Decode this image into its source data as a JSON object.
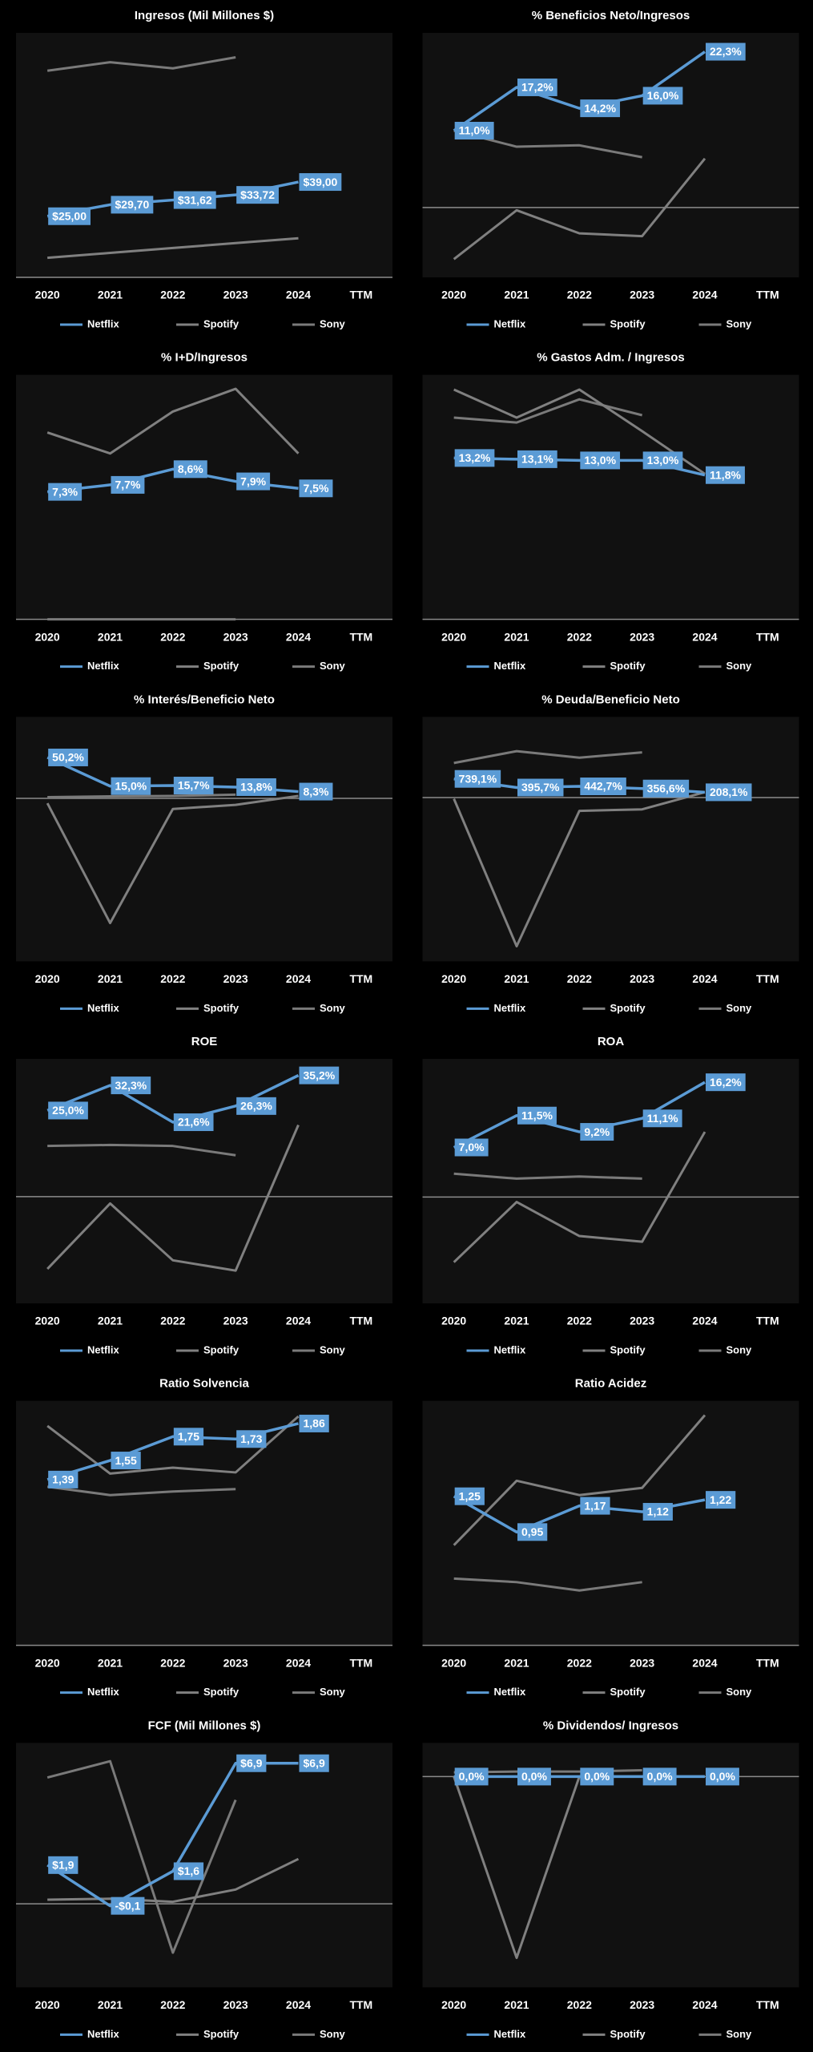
{
  "chart_data": [
    {
      "type": "line",
      "title": "Ingresos (Mil Millones $)",
      "categories": [
        "2020",
        "2021",
        "2022",
        "2023",
        "2024",
        "TTM"
      ],
      "ylim": [
        0,
        100
      ],
      "series": [
        {
          "name": "Netflix",
          "color": "#5b9bd5",
          "values": [
            25,
            29.7,
            31.62,
            33.72,
            39,
            null
          ],
          "value_labels": [
            "$25,00",
            "$29,70",
            "$31,62",
            "$33,72",
            "$39,00",
            null
          ]
        },
        {
          "name": "Spotify",
          "color": "#808080",
          "values": [
            8,
            10,
            12,
            14,
            16,
            null
          ]
        },
        {
          "name": "Sony",
          "color": "#7a7a7a",
          "values": [
            84.5,
            88,
            85.5,
            90,
            null,
            null
          ]
        }
      ]
    },
    {
      "type": "line",
      "title": "% Beneficios Neto/Ingresos",
      "categories": [
        "2020",
        "2021",
        "2022",
        "2023",
        "2024",
        "TTM"
      ],
      "ylim": [
        -10,
        25
      ],
      "series": [
        {
          "name": "Netflix",
          "color": "#5b9bd5",
          "values": [
            11.0,
            17.2,
            14.2,
            16.0,
            22.3,
            null
          ],
          "value_labels": [
            "11,0%",
            "17,2%",
            "14,2%",
            "16,0%",
            "22,3%",
            null
          ]
        },
        {
          "name": "Spotify",
          "color": "#808080",
          "values": [
            -7.4,
            -0.4,
            -3.7,
            -4.1,
            7.0,
            null
          ]
        },
        {
          "name": "Sony",
          "color": "#7a7a7a",
          "values": [
            11,
            8.7,
            8.9,
            7.2,
            null,
            null
          ]
        }
      ]
    },
    {
      "type": "line",
      "title": "% I+D/Ingresos",
      "categories": [
        "2020",
        "2021",
        "2022",
        "2023",
        "2024",
        "TTM"
      ],
      "ylim": [
        0,
        14
      ],
      "series": [
        {
          "name": "Netflix",
          "color": "#5b9bd5",
          "values": [
            7.3,
            7.7,
            8.6,
            7.9,
            7.5,
            null
          ],
          "value_labels": [
            "7,3%",
            "7,7%",
            "8,6%",
            "7,9%",
            "7,5%",
            null
          ]
        },
        {
          "name": "Spotify",
          "color": "#808080",
          "values": [
            10.7,
            9.5,
            11.9,
            13.2,
            9.5,
            null
          ]
        },
        {
          "name": "Sony",
          "color": "#7a7a7a",
          "values": [
            0,
            0,
            0,
            0,
            null,
            null
          ]
        }
      ]
    },
    {
      "type": "line",
      "title": "% Gastos Adm. / Ingresos",
      "categories": [
        "2020",
        "2021",
        "2022",
        "2023",
        "2024",
        "TTM"
      ],
      "ylim": [
        0,
        20
      ],
      "series": [
        {
          "name": "Netflix",
          "color": "#5b9bd5",
          "values": [
            13.2,
            13.1,
            13.0,
            13.0,
            11.8,
            null
          ],
          "value_labels": [
            "13,2%",
            "13,1%",
            "13,0%",
            "13,0%",
            "11,8%",
            null
          ]
        },
        {
          "name": "Spotify",
          "color": "#808080",
          "values": [
            18.8,
            16.5,
            18.8,
            15.4,
            11.9,
            null
          ]
        },
        {
          "name": "Sony",
          "color": "#7a7a7a",
          "values": [
            16.5,
            16.1,
            18.0,
            16.7,
            null,
            null
          ]
        }
      ]
    },
    {
      "type": "line",
      "title": "% Interés/Beneficio Neto",
      "categories": [
        "2020",
        "2021",
        "2022",
        "2023",
        "2024",
        "TTM"
      ],
      "ylim": [
        -200,
        100
      ],
      "series": [
        {
          "name": "Netflix",
          "color": "#5b9bd5",
          "values": [
            50.2,
            15.0,
            15.7,
            13.8,
            8.3,
            null
          ],
          "value_labels": [
            "50,2%",
            "15,0%",
            "15,7%",
            "13,8%",
            "8,3%",
            null
          ]
        },
        {
          "name": "Spotify",
          "color": "#808080",
          "values": [
            -6,
            -153,
            -13,
            -8,
            3,
            null
          ]
        },
        {
          "name": "Sony",
          "color": "#7a7a7a",
          "values": [
            1.5,
            2.5,
            3,
            4.5,
            null,
            null
          ]
        }
      ]
    },
    {
      "type": "line",
      "title": "% Deuda/Beneficio Neto",
      "categories": [
        "2020",
        "2021",
        "2022",
        "2023",
        "2024",
        "TTM"
      ],
      "ylim": [
        -6500,
        3200
      ],
      "series": [
        {
          "name": "Netflix",
          "color": "#5b9bd5",
          "values": [
            739.1,
            395.7,
            442.7,
            356.6,
            208.1,
            null
          ],
          "value_labels": [
            "739,1%",
            "395,7%",
            "442,7%",
            "356,6%",
            "208,1%",
            null
          ]
        },
        {
          "name": "Spotify",
          "color": "#808080",
          "values": [
            -50,
            -5900,
            -530,
            -470,
            210,
            null
          ]
        },
        {
          "name": "Sony",
          "color": "#7a7a7a",
          "values": [
            1370,
            1840,
            1580,
            1790,
            null,
            null
          ]
        }
      ]
    },
    {
      "type": "line",
      "title": "ROE",
      "categories": [
        "2020",
        "2021",
        "2022",
        "2023",
        "2024",
        "TTM"
      ],
      "ylim": [
        -31,
        40
      ],
      "series": [
        {
          "name": "Netflix",
          "color": "#5b9bd5",
          "values": [
            25.0,
            32.3,
            21.6,
            26.3,
            35.2,
            null
          ],
          "value_labels": [
            "25,0%",
            "32,3%",
            "21,6%",
            "26,3%",
            "35,2%",
            null
          ]
        },
        {
          "name": "Spotify",
          "color": "#808080",
          "values": [
            -21,
            -2,
            -18.5,
            -21.5,
            20.8,
            null
          ]
        },
        {
          "name": "Sony",
          "color": "#7a7a7a",
          "values": [
            14.7,
            15,
            14.7,
            12,
            null,
            null
          ]
        }
      ]
    },
    {
      "type": "line",
      "title": "ROA",
      "categories": [
        "2020",
        "2021",
        "2022",
        "2023",
        "2024",
        "TTM"
      ],
      "ylim": [
        -15,
        19.5
      ],
      "series": [
        {
          "name": "Netflix",
          "color": "#5b9bd5",
          "values": [
            7.0,
            11.5,
            9.2,
            11.1,
            16.2,
            null
          ],
          "value_labels": [
            "7,0%",
            "11,5%",
            "9,2%",
            "11,1%",
            "16,2%",
            null
          ]
        },
        {
          "name": "Spotify",
          "color": "#808080",
          "values": [
            -9.2,
            -0.7,
            -5.5,
            -6.3,
            9.2,
            null
          ]
        },
        {
          "name": "Sony",
          "color": "#7a7a7a",
          "values": [
            3.3,
            2.6,
            2.9,
            2.6,
            null,
            null
          ]
        }
      ]
    },
    {
      "type": "line",
      "title": "Ratio Solvencia",
      "categories": [
        "2020",
        "2021",
        "2022",
        "2023",
        "2024",
        "TTM"
      ],
      "ylim": [
        0,
        2.05
      ],
      "series": [
        {
          "name": "Netflix",
          "color": "#5b9bd5",
          "values": [
            1.39,
            1.55,
            1.75,
            1.73,
            1.86,
            null
          ],
          "value_labels": [
            "1,39",
            "1,55",
            "1,75",
            "1,73",
            "1,86",
            null
          ]
        },
        {
          "name": "Spotify",
          "color": "#808080",
          "values": [
            1.84,
            1.44,
            1.49,
            1.45,
            1.92,
            null
          ]
        },
        {
          "name": "Sony",
          "color": "#7a7a7a",
          "values": [
            1.33,
            1.26,
            1.29,
            1.31,
            null,
            null
          ]
        }
      ]
    },
    {
      "type": "line",
      "title": "Ratio Acidez",
      "categories": [
        "2020",
        "2021",
        "2022",
        "2023",
        "2024",
        "TTM"
      ],
      "ylim": [
        0,
        2.05
      ],
      "series": [
        {
          "name": "Netflix",
          "color": "#5b9bd5",
          "values": [
            1.25,
            0.95,
            1.17,
            1.12,
            1.22,
            null
          ],
          "value_labels": [
            "1,25",
            "0,95",
            "1,17",
            "1,12",
            "1,22",
            null
          ]
        },
        {
          "name": "Spotify",
          "color": "#808080",
          "values": [
            0.84,
            1.38,
            1.26,
            1.32,
            1.93,
            null
          ]
        },
        {
          "name": "Sony",
          "color": "#7a7a7a",
          "values": [
            0.56,
            0.53,
            0.46,
            0.53,
            null,
            null
          ]
        }
      ]
    },
    {
      "type": "line",
      "title": "FCF (Mil Millones $)",
      "categories": [
        "2020",
        "2021",
        "2022",
        "2023",
        "2024",
        "TTM"
      ],
      "ylim": [
        -4.1,
        7.9
      ],
      "series": [
        {
          "name": "Netflix",
          "color": "#5b9bd5",
          "values": [
            1.9,
            -0.1,
            1.6,
            6.9,
            6.9,
            null
          ],
          "value_labels": [
            "$1,9",
            "-$0,1",
            "$1,6",
            "$6,9",
            "$6,9",
            null
          ]
        },
        {
          "name": "Spotify",
          "color": "#808080",
          "values": [
            0.2,
            0.25,
            0.1,
            0.7,
            2.2,
            null
          ]
        },
        {
          "name": "Sony",
          "color": "#7a7a7a",
          "values": [
            6.2,
            7.0,
            -2.4,
            5.1,
            null,
            null
          ]
        }
      ]
    },
    {
      "type": "line",
      "title": "% Dividendos/ Ingresos",
      "categories": [
        "2020",
        "2021",
        "2022",
        "2023",
        "2024",
        "TTM"
      ],
      "ylim": [
        -5,
        0.8
      ],
      "series": [
        {
          "name": "Netflix",
          "color": "#5b9bd5",
          "values": [
            0,
            0,
            0,
            0,
            0,
            null
          ],
          "value_labels": [
            "0,0%",
            "0,0%",
            "0,0%",
            "0,0%",
            "0,0%",
            null
          ]
        },
        {
          "name": "Spotify",
          "color": "#808080",
          "values": [
            0,
            -4.3,
            0,
            0,
            0,
            null
          ]
        },
        {
          "name": "Sony",
          "color": "#7a7a7a",
          "values": [
            0.1,
            0.12,
            0.12,
            0.15,
            null,
            null
          ]
        }
      ]
    }
  ]
}
